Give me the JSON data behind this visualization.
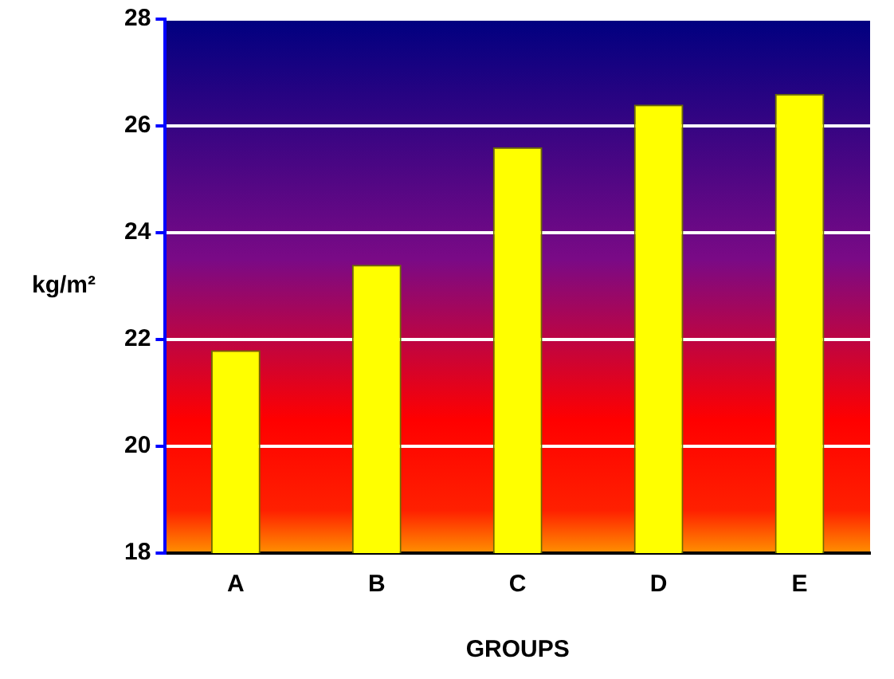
{
  "chart_data": {
    "type": "bar",
    "xlabel": "GROUPS",
    "ylabel": "kg/m²",
    "categories": [
      "A",
      "B",
      "C",
      "D",
      "E"
    ],
    "values": [
      21.8,
      23.4,
      25.6,
      26.4,
      26.6
    ],
    "color": "#ffff00",
    "ylim": [
      18,
      28
    ],
    "yticks": [
      18,
      20,
      22,
      24,
      26,
      28
    ],
    "grid": "y",
    "legend": false
  }
}
